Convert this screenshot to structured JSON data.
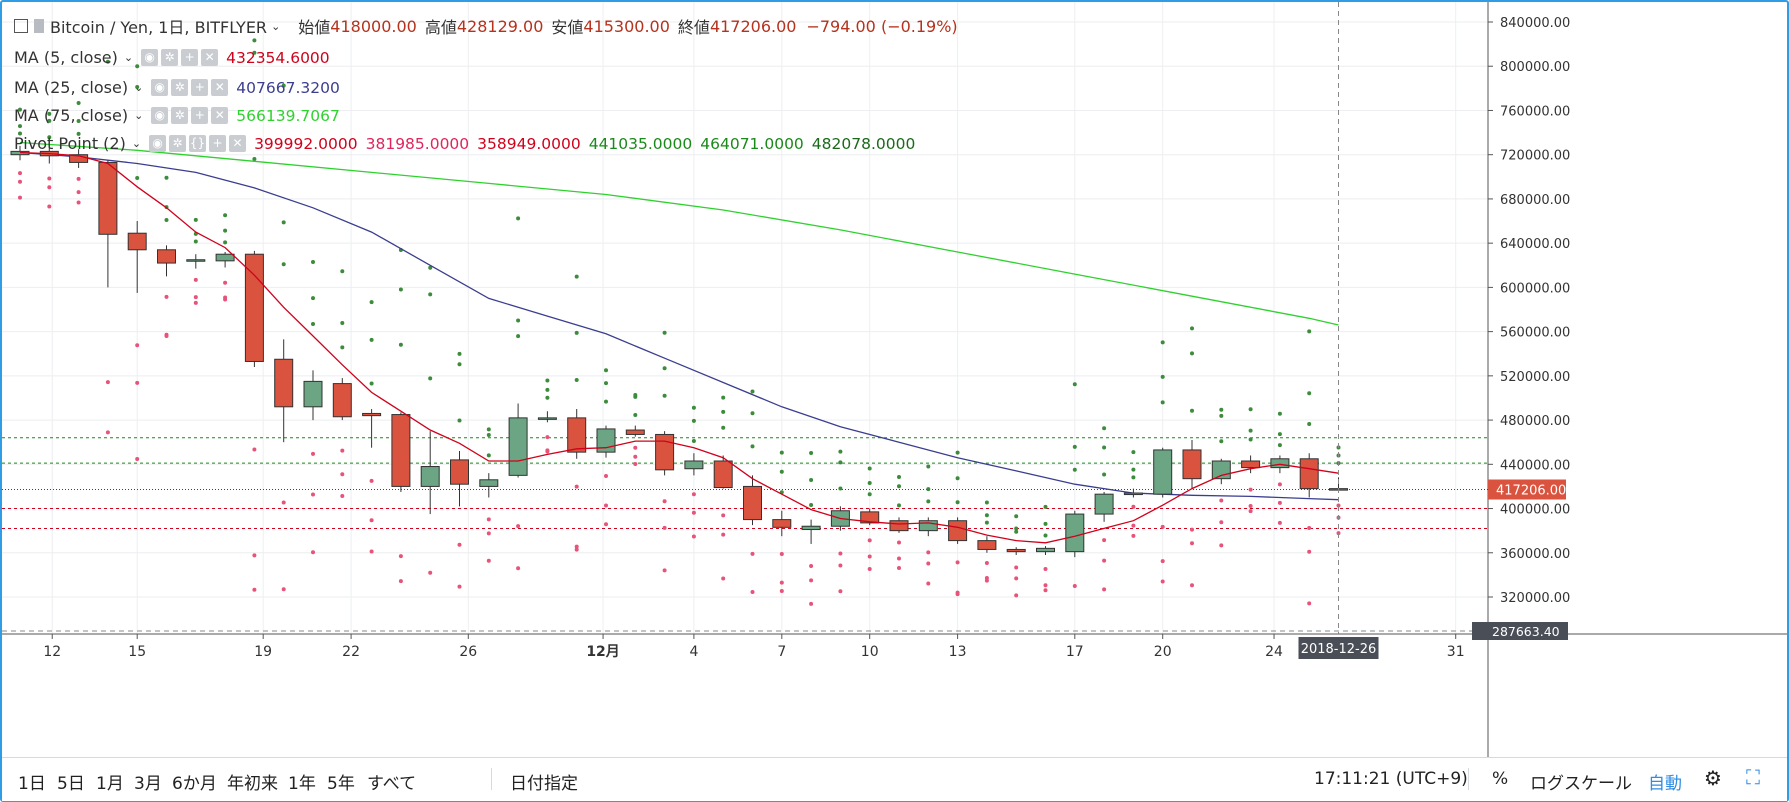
{
  "header": {
    "symbol": "Bitcoin / Yen, 1日, BITFLYER",
    "open_label": "始値",
    "open": "418000.00",
    "high_label": "高値",
    "high": "428129.00",
    "low_label": "安値",
    "low": "415300.00",
    "close_label": "終値",
    "close": "417206.00",
    "change": "−794.00 (−0.19%)"
  },
  "indicators": [
    {
      "title": "MA (5, close)",
      "values": [
        "432354.6000"
      ],
      "colors": [
        "#d0021b"
      ]
    },
    {
      "title": "MA (25, close)",
      "values": [
        "407667.3200"
      ],
      "colors": [
        "#3b3e8f"
      ]
    },
    {
      "title": "MA (75, close)",
      "values": [
        "566139.7067"
      ],
      "colors": [
        "#2fd12f"
      ]
    },
    {
      "title": "Pivot Point (2)",
      "values": [
        "399992.0000",
        "381985.0000",
        "358949.0000",
        "441035.0000",
        "464071.0000",
        "482078.0000"
      ],
      "colors": [
        "#d0021b",
        "#e0245e",
        "#d0021b",
        "#1a8a1a",
        "#1a8a1a",
        "#1a6a1a"
      ]
    }
  ],
  "toolbar": {
    "ranges": [
      "1日",
      "5日",
      "1月",
      "3月",
      "6か月",
      "年初来",
      "1年",
      "5年",
      "すべて"
    ],
    "goto_date": "日付指定",
    "clock": "17:11:21 (UTC+9)",
    "percent": "%",
    "log_scale": "ログスケール",
    "auto": "自動"
  },
  "chart_data": {
    "type": "candlestick",
    "y_ticks": [
      "840000.00",
      "800000.00",
      "760000.00",
      "720000.00",
      "680000.00",
      "640000.00",
      "600000.00",
      "560000.00",
      "520000.00",
      "480000.00",
      "440000.00",
      "400000.00",
      "360000.00",
      "320000.00"
    ],
    "ylim": [
      280000,
      850000
    ],
    "x_tick_labels": [
      "12",
      "15",
      "19",
      "22",
      "26",
      "12月",
      "4",
      "7",
      "10",
      "13",
      "17",
      "20",
      "24",
      "31"
    ],
    "last_price_label": "417206.00",
    "crosshair_date": "2018-12-26",
    "crosshair_price": "287663.40",
    "ohlc": [
      [
        720000,
        728000,
        715000,
        723000
      ],
      [
        723000,
        727000,
        712000,
        719000
      ],
      [
        720000,
        725000,
        708000,
        713000
      ],
      [
        713000,
        715000,
        600000,
        648000
      ],
      [
        649000,
        660000,
        595000,
        634000
      ],
      [
        634000,
        638000,
        610000,
        622000
      ],
      [
        624000,
        630000,
        617000,
        625000
      ],
      [
        624000,
        632000,
        618000,
        630000
      ],
      [
        630000,
        633000,
        528000,
        533000
      ],
      [
        535000,
        553000,
        460000,
        492000
      ],
      [
        492000,
        525000,
        480000,
        515000
      ],
      [
        513000,
        518000,
        480000,
        483000
      ],
      [
        486000,
        490000,
        455000,
        484000
      ],
      [
        485000,
        487000,
        415000,
        420000
      ],
      [
        420000,
        470000,
        395000,
        438000
      ],
      [
        444000,
        452000,
        402000,
        422000
      ],
      [
        420000,
        432000,
        410000,
        426000
      ],
      [
        430000,
        495000,
        428000,
        482000
      ],
      [
        481000,
        488000,
        478000,
        482000
      ],
      [
        482000,
        490000,
        445000,
        451000
      ],
      [
        451000,
        475000,
        446000,
        472000
      ],
      [
        471000,
        475000,
        465000,
        467000
      ],
      [
        467000,
        470000,
        430000,
        435000
      ],
      [
        436000,
        450000,
        430000,
        443000
      ],
      [
        443000,
        448000,
        418000,
        419000
      ],
      [
        420000,
        430000,
        385000,
        390000
      ],
      [
        390000,
        398000,
        375000,
        383000
      ],
      [
        381000,
        390000,
        368000,
        384000
      ],
      [
        384000,
        402000,
        380000,
        398000
      ],
      [
        397000,
        400000,
        385000,
        387000
      ],
      [
        389000,
        392000,
        378000,
        380000
      ],
      [
        380000,
        392000,
        375000,
        389000
      ],
      [
        389000,
        392000,
        368000,
        371000
      ],
      [
        371000,
        375000,
        360000,
        363000
      ],
      [
        363000,
        365000,
        358000,
        361000
      ],
      [
        361000,
        366000,
        358000,
        364000
      ],
      [
        361000,
        398000,
        356000,
        395000
      ],
      [
        395000,
        415000,
        388000,
        413000
      ],
      [
        413000,
        418000,
        410000,
        414000
      ],
      [
        413000,
        455000,
        410000,
        453000
      ],
      [
        453000,
        462000,
        418000,
        427000
      ],
      [
        427000,
        445000,
        422000,
        443000
      ],
      [
        443000,
        448000,
        432000,
        437000
      ],
      [
        437000,
        448000,
        432000,
        445000
      ],
      [
        445000,
        450000,
        410000,
        418000
      ],
      [
        418000,
        428129,
        415300,
        417206
      ]
    ],
    "ma5": [
      [
        0,
        722000
      ],
      [
        1,
        721000
      ],
      [
        2,
        719000
      ],
      [
        3,
        712000
      ],
      [
        4,
        691000
      ],
      [
        5,
        672000
      ],
      [
        6,
        650000
      ],
      [
        7,
        636000
      ],
      [
        8,
        611000
      ],
      [
        9,
        582000
      ],
      [
        10,
        556000
      ],
      [
        11,
        530000
      ],
      [
        12,
        505000
      ],
      [
        13,
        488000
      ],
      [
        14,
        471000
      ],
      [
        15,
        459000
      ],
      [
        16,
        443000
      ],
      [
        17,
        443000
      ],
      [
        18,
        449000
      ],
      [
        19,
        454000
      ],
      [
        20,
        455000
      ],
      [
        21,
        461000
      ],
      [
        22,
        461000
      ],
      [
        23,
        455000
      ],
      [
        24,
        446000
      ],
      [
        25,
        427000
      ],
      [
        26,
        413000
      ],
      [
        27,
        399000
      ],
      [
        28,
        391000
      ],
      [
        29,
        388000
      ],
      [
        30,
        386000
      ],
      [
        31,
        387000
      ],
      [
        32,
        383000
      ],
      [
        33,
        376000
      ],
      [
        34,
        371000
      ],
      [
        35,
        369000
      ],
      [
        36,
        375000
      ],
      [
        37,
        382000
      ],
      [
        38,
        389000
      ],
      [
        39,
        403000
      ],
      [
        40,
        418000
      ],
      [
        41,
        430000
      ],
      [
        42,
        436000
      ],
      [
        43,
        440000
      ],
      [
        44,
        436000
      ],
      [
        45,
        432000
      ]
    ],
    "ma25": [
      [
        0,
        722000
      ],
      [
        2,
        718000
      ],
      [
        4,
        712000
      ],
      [
        6,
        704000
      ],
      [
        8,
        690000
      ],
      [
        10,
        672000
      ],
      [
        12,
        650000
      ],
      [
        14,
        620000
      ],
      [
        16,
        590000
      ],
      [
        18,
        574000
      ],
      [
        20,
        558000
      ],
      [
        22,
        536000
      ],
      [
        24,
        514000
      ],
      [
        26,
        492000
      ],
      [
        28,
        474000
      ],
      [
        30,
        460000
      ],
      [
        32,
        446000
      ],
      [
        34,
        434000
      ],
      [
        36,
        422000
      ],
      [
        38,
        414000
      ],
      [
        40,
        412000
      ],
      [
        42,
        411000
      ],
      [
        44,
        409000
      ],
      [
        45,
        408000
      ]
    ],
    "ma75": [
      [
        0,
        731000
      ],
      [
        4,
        724000
      ],
      [
        8,
        714000
      ],
      [
        12,
        704000
      ],
      [
        16,
        694000
      ],
      [
        20,
        684000
      ],
      [
        24,
        670000
      ],
      [
        28,
        652000
      ],
      [
        32,
        632000
      ],
      [
        36,
        612000
      ],
      [
        40,
        592000
      ],
      [
        44,
        572000
      ],
      [
        45,
        566000
      ]
    ],
    "pivot_levels": [
      {
        "value": 464071,
        "color": "#1a8a1a"
      },
      {
        "value": 441035,
        "color": "#1a8a1a"
      },
      {
        "value": 399992,
        "color": "#d0021b"
      },
      {
        "value": 381985,
        "color": "#d0021b"
      }
    ],
    "colors": {
      "up": "#6ba583",
      "down": "#d9533f",
      "ma5": "#d0021b",
      "ma25": "#3b3e8f",
      "ma75": "#2fd12f",
      "dots_up": "#3c8c3c",
      "dots_down": "#e8537a"
    }
  }
}
